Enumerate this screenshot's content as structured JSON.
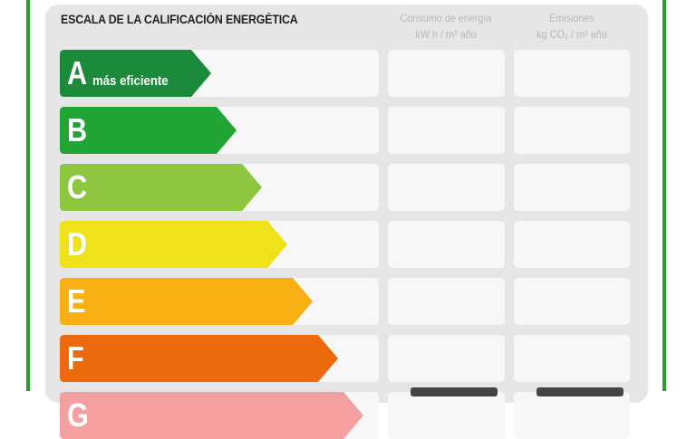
{
  "header": {
    "title": "ESCALA DE LA CALIFICACIÓN ENERGÉTICA",
    "col_consumo": "Consumo de energía",
    "col_consumo_unit": "kW h / m² año",
    "col_emisiones": "Emisiones",
    "col_emisiones_unit": "kg CO₂ / m² año"
  },
  "ratings": [
    {
      "letter": "A",
      "label": "más eficiente",
      "color": "#1b8a3a"
    },
    {
      "letter": "B",
      "label": "",
      "color": "#21a636"
    },
    {
      "letter": "C",
      "label": "",
      "color": "#8dc63f"
    },
    {
      "letter": "D",
      "label": "",
      "color": "#efe21a"
    },
    {
      "letter": "E",
      "label": "",
      "color": "#f8b012"
    },
    {
      "letter": "F",
      "label": "",
      "color": "#ec6a0c"
    },
    {
      "letter": "G",
      "label": "",
      "color": "#f4a0a0"
    }
  ],
  "frame_color": "#2e9b32"
}
